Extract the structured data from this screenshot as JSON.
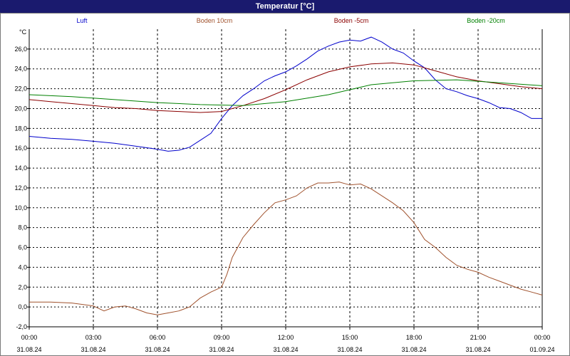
{
  "window": {
    "title": "Temperatur [°C]"
  },
  "chart_data": {
    "type": "line",
    "title": "Temperatur [°C]",
    "ylabel": "°C",
    "xlabel": "",
    "ylim": [
      -2,
      28
    ],
    "xlim": [
      0,
      24
    ],
    "grid": true,
    "legend_position": "top",
    "y_ticks": [
      "-2,0",
      "0,0",
      "2,0",
      "4,0",
      "6,0",
      "8,0",
      "10,0",
      "12,0",
      "14,0",
      "16,0",
      "18,0",
      "20,0",
      "22,0",
      "24,0",
      "26,0"
    ],
    "x_ticks": [
      {
        "time": "00:00",
        "date": "31.08.24"
      },
      {
        "time": "03:00",
        "date": "31.08.24"
      },
      {
        "time": "06:00",
        "date": "31.08.24"
      },
      {
        "time": "09:00",
        "date": "31.08.24"
      },
      {
        "time": "12:00",
        "date": "31.08.24"
      },
      {
        "time": "15:00",
        "date": "31.08.24"
      },
      {
        "time": "18:00",
        "date": "31.08.24"
      },
      {
        "time": "21:00",
        "date": "31.08.24"
      },
      {
        "time": "00:00",
        "date": "01.09.24"
      }
    ],
    "series": [
      {
        "name": "Luft",
        "color": "#0000cc",
        "x": [
          0,
          1,
          2,
          3,
          4,
          5,
          6,
          6.5,
          7,
          7.5,
          8,
          8.5,
          9,
          9.5,
          10,
          10.5,
          11,
          11.5,
          12,
          12.5,
          13,
          13.5,
          14,
          14.5,
          15,
          15.5,
          16,
          16.5,
          17,
          17.5,
          18,
          18.5,
          19,
          19.5,
          20,
          20.5,
          21,
          21.5,
          22,
          22.5,
          23,
          23.5,
          24
        ],
        "y": [
          17.2,
          17.0,
          16.9,
          16.7,
          16.5,
          16.2,
          15.9,
          15.7,
          15.8,
          16.1,
          16.8,
          17.5,
          19.0,
          20.3,
          21.3,
          22.0,
          22.8,
          23.3,
          23.7,
          24.3,
          25.0,
          25.8,
          26.3,
          26.7,
          26.9,
          26.8,
          27.2,
          26.7,
          26.0,
          25.6,
          24.8,
          24.1,
          22.9,
          22.0,
          21.7,
          21.3,
          21.0,
          20.6,
          20.1,
          20.0,
          19.6,
          19.0,
          19.0
        ]
      },
      {
        "name": "Boden 10cm",
        "color": "#a0522d",
        "x": [
          0,
          1,
          2,
          3,
          3.5,
          4,
          4.5,
          5,
          5.5,
          6,
          6.5,
          7,
          7.5,
          8,
          8.5,
          9,
          9.25,
          9.5,
          10,
          10.5,
          11,
          11.5,
          12,
          12.5,
          13,
          13.5,
          14,
          14.5,
          15,
          15.5,
          16,
          16.5,
          17,
          17.5,
          18,
          18.5,
          19,
          19.5,
          20,
          20.5,
          21,
          21.5,
          22,
          22.5,
          23,
          23.5,
          24
        ],
        "y": [
          0.5,
          0.5,
          0.4,
          0.1,
          -0.4,
          0.0,
          0.1,
          -0.2,
          -0.6,
          -0.8,
          -0.6,
          -0.4,
          0.0,
          0.9,
          1.5,
          2.0,
          3.3,
          5.0,
          7.0,
          8.3,
          9.5,
          10.5,
          10.8,
          11.2,
          12.0,
          12.5,
          12.5,
          12.6,
          12.3,
          12.4,
          11.9,
          11.2,
          10.5,
          9.7,
          8.5,
          6.8,
          6.0,
          5.0,
          4.2,
          3.8,
          3.5,
          3.0,
          2.6,
          2.2,
          1.8,
          1.5,
          1.2
        ]
      },
      {
        "name": "Boden -5cm",
        "color": "#8b0000",
        "x": [
          0,
          1,
          2,
          3,
          4,
          5,
          6,
          7,
          8,
          9,
          10,
          11,
          12,
          13,
          14,
          15,
          16,
          17,
          18,
          19,
          20,
          21,
          22,
          23,
          24
        ],
        "y": [
          20.9,
          20.7,
          20.5,
          20.3,
          20.1,
          20.0,
          19.8,
          19.7,
          19.6,
          19.7,
          20.3,
          21.0,
          21.9,
          22.9,
          23.7,
          24.2,
          24.5,
          24.6,
          24.4,
          23.8,
          23.2,
          22.8,
          22.5,
          22.2,
          22.0
        ]
      },
      {
        "name": "Boden -20cm",
        "color": "#008000",
        "x": [
          0,
          2,
          4,
          6,
          8,
          10,
          12,
          14,
          16,
          18,
          20,
          22,
          24
        ],
        "y": [
          21.4,
          21.2,
          20.9,
          20.6,
          20.4,
          20.3,
          20.7,
          21.4,
          22.4,
          22.8,
          22.9,
          22.6,
          22.3
        ]
      }
    ]
  }
}
